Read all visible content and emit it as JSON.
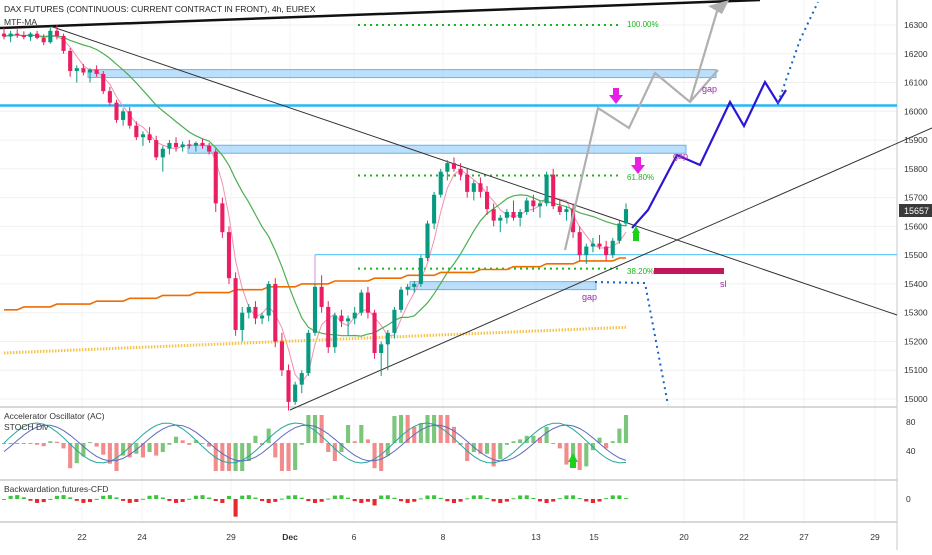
{
  "header": {
    "title": "DAX FUTURES (CONTINUOUS: CURRENT CONTRACT IN FRONT), 4h, EUREX",
    "indicator": "MTF-MA"
  },
  "colors": {
    "bull": "#089981",
    "bear": "#e91e63",
    "ma_green": "#4caf50",
    "ma_pink": "#f48fb1",
    "ma_orange": "#ef6c00",
    "ma_yellow": "#f6c24a",
    "fib": "#1bb61b",
    "zone": "#90caf9",
    "level": "#29b6f6",
    "projection_gray": "#b0b0b0",
    "projection_blue": "#2c15d6",
    "dotted_blue": "#1565c0",
    "arrow_magenta": "#e91ee6",
    "arrow_green": "#1bd11b",
    "stoploss": "#c2185b",
    "ac_up": "#7cc67c",
    "ac_down": "#f28b8b",
    "back_up": "#3cc43c",
    "back_down": "#e8282d"
  },
  "annotations": {
    "fib_100": "100.00%",
    "fib_618": "61.80%",
    "fib_382": "38.20%",
    "gap_upper": "gap",
    "gap_mid": "gap",
    "gap_lower": "gap",
    "stop_loss": "sl",
    "last_price": "15657"
  },
  "panels": {
    "ac_label": "Accelerator Oscillator (AC)",
    "stoch_label": "STOCH Div",
    "back_label": "Backwardation,futures-CFD"
  },
  "chart_data": {
    "type": "candlestick",
    "title": "DAX FUTURES (CONTINUOUS: CURRENT CONTRACT IN FRONT), 4h, EUREX",
    "x_ticks": [
      "22",
      "24",
      "29",
      "Dec",
      "6",
      "8",
      "13",
      "15",
      "20",
      "22",
      "27",
      "29"
    ],
    "y_ticks": [
      15000,
      15100,
      15200,
      15300,
      15400,
      15500,
      15600,
      15700,
      15800,
      15900,
      16000,
      16100,
      16200,
      16300
    ],
    "ylim": [
      14960,
      16400
    ],
    "last_price": 15657,
    "levels": {
      "horizontal_support": 16020,
      "fib_100": 16300,
      "fib_618": 15777,
      "fib_382": 15453,
      "light_line": 15502,
      "stop_loss": 15445
    },
    "zones": [
      {
        "name": "gap",
        "from": 16125,
        "to": 16145
      },
      {
        "name": "gap",
        "from": 15870,
        "to": 15882
      },
      {
        "name": "gap",
        "from": 15398,
        "to": 15408
      }
    ],
    "ac_ticks": [
      40,
      80
    ],
    "back_ticks": [
      0
    ],
    "candles": [
      [
        16270,
        16290,
        16250,
        16260
      ],
      [
        16260,
        16280,
        16240,
        16270
      ],
      [
        16270,
        16285,
        16255,
        16265
      ],
      [
        16265,
        16278,
        16250,
        16258
      ],
      [
        16258,
        16275,
        16245,
        16270
      ],
      [
        16270,
        16280,
        16250,
        16255
      ],
      [
        16255,
        16268,
        16230,
        16240
      ],
      [
        16240,
        16290,
        16235,
        16280
      ],
      [
        16280,
        16300,
        16250,
        16262
      ],
      [
        16262,
        16270,
        16200,
        16210
      ],
      [
        16210,
        16220,
        16120,
        16140
      ],
      [
        16140,
        16160,
        16100,
        16150
      ],
      [
        16150,
        16165,
        16125,
        16135
      ],
      [
        16135,
        16150,
        16100,
        16145
      ],
      [
        16145,
        16160,
        16120,
        16130
      ],
      [
        16130,
        16140,
        16060,
        16070
      ],
      [
        16070,
        16085,
        16020,
        16030
      ],
      [
        16030,
        16040,
        15960,
        15970
      ],
      [
        15970,
        16010,
        15950,
        16000
      ],
      [
        16000,
        16015,
        15940,
        15950
      ],
      [
        15950,
        15965,
        15900,
        15910
      ],
      [
        15910,
        15930,
        15880,
        15920
      ],
      [
        15920,
        15945,
        15890,
        15900
      ],
      [
        15900,
        15915,
        15830,
        15840
      ],
      [
        15840,
        15880,
        15790,
        15870
      ],
      [
        15870,
        15900,
        15850,
        15890
      ],
      [
        15890,
        15910,
        15860,
        15875
      ],
      [
        15875,
        15895,
        15860,
        15885
      ],
      [
        15885,
        15900,
        15870,
        15880
      ],
      [
        15880,
        15895,
        15860,
        15890
      ],
      [
        15890,
        15905,
        15870,
        15880
      ],
      [
        15880,
        15890,
        15850,
        15860
      ],
      [
        15860,
        15870,
        15650,
        15680
      ],
      [
        15680,
        15700,
        15560,
        15580
      ],
      [
        15580,
        15600,
        15400,
        15420
      ],
      [
        15420,
        15440,
        15220,
        15240
      ],
      [
        15240,
        15320,
        15200,
        15300
      ],
      [
        15300,
        15330,
        15280,
        15320
      ],
      [
        15320,
        15340,
        15260,
        15280
      ],
      [
        15280,
        15300,
        15260,
        15290
      ],
      [
        15290,
        15410,
        15270,
        15400
      ],
      [
        15400,
        15420,
        15180,
        15200
      ],
      [
        15200,
        15230,
        15080,
        15100
      ],
      [
        15100,
        15120,
        14960,
        14990
      ],
      [
        14990,
        15060,
        14980,
        15050
      ],
      [
        15050,
        15100,
        15020,
        15090
      ],
      [
        15090,
        15240,
        15080,
        15230
      ],
      [
        15230,
        15400,
        15220,
        15390
      ],
      [
        15390,
        15430,
        15300,
        15320
      ],
      [
        15320,
        15340,
        15160,
        15180
      ],
      [
        15180,
        15300,
        15160,
        15290
      ],
      [
        15290,
        15310,
        15250,
        15270
      ],
      [
        15270,
        15290,
        15220,
        15280
      ],
      [
        15280,
        15320,
        15260,
        15300
      ],
      [
        15300,
        15380,
        15290,
        15370
      ],
      [
        15370,
        15390,
        15280,
        15300
      ],
      [
        15300,
        15310,
        15140,
        15160
      ],
      [
        15160,
        15200,
        15080,
        15190
      ],
      [
        15190,
        15240,
        15100,
        15230
      ],
      [
        15230,
        15320,
        15210,
        15310
      ],
      [
        15310,
        15390,
        15300,
        15380
      ],
      [
        15380,
        15400,
        15360,
        15390
      ],
      [
        15390,
        15410,
        15370,
        15400
      ],
      [
        15400,
        15500,
        15390,
        15490
      ],
      [
        15490,
        15620,
        15480,
        15610
      ],
      [
        15610,
        15720,
        15590,
        15710
      ],
      [
        15710,
        15800,
        15700,
        15790
      ],
      [
        15790,
        15830,
        15760,
        15820
      ],
      [
        15820,
        15840,
        15790,
        15800
      ],
      [
        15800,
        15820,
        15760,
        15780
      ],
      [
        15780,
        15800,
        15700,
        15720
      ],
      [
        15720,
        15760,
        15690,
        15750
      ],
      [
        15750,
        15770,
        15700,
        15720
      ],
      [
        15720,
        15740,
        15640,
        15660
      ],
      [
        15660,
        15680,
        15600,
        15620
      ],
      [
        15620,
        15640,
        15580,
        15630
      ],
      [
        15630,
        15660,
        15610,
        15650
      ],
      [
        15650,
        15690,
        15620,
        15630
      ],
      [
        15630,
        15660,
        15600,
        15650
      ],
      [
        15650,
        15700,
        15640,
        15690
      ],
      [
        15690,
        15710,
        15650,
        15670
      ],
      [
        15670,
        15690,
        15630,
        15680
      ],
      [
        15680,
        15790,
        15670,
        15780
      ],
      [
        15780,
        15800,
        15660,
        15670
      ],
      [
        15670,
        15690,
        15640,
        15650
      ],
      [
        15650,
        15670,
        15620,
        15660
      ],
      [
        15660,
        15680,
        15560,
        15580
      ],
      [
        15580,
        15600,
        15480,
        15500
      ],
      [
        15500,
        15540,
        15470,
        15530
      ],
      [
        15530,
        15560,
        15510,
        15540
      ],
      [
        15540,
        15570,
        15520,
        15530
      ],
      [
        15530,
        15550,
        15480,
        15500
      ],
      [
        15500,
        15560,
        15490,
        15550
      ],
      [
        15550,
        15620,
        15540,
        15610
      ],
      [
        15610,
        15680,
        15600,
        15660
      ]
    ]
  }
}
